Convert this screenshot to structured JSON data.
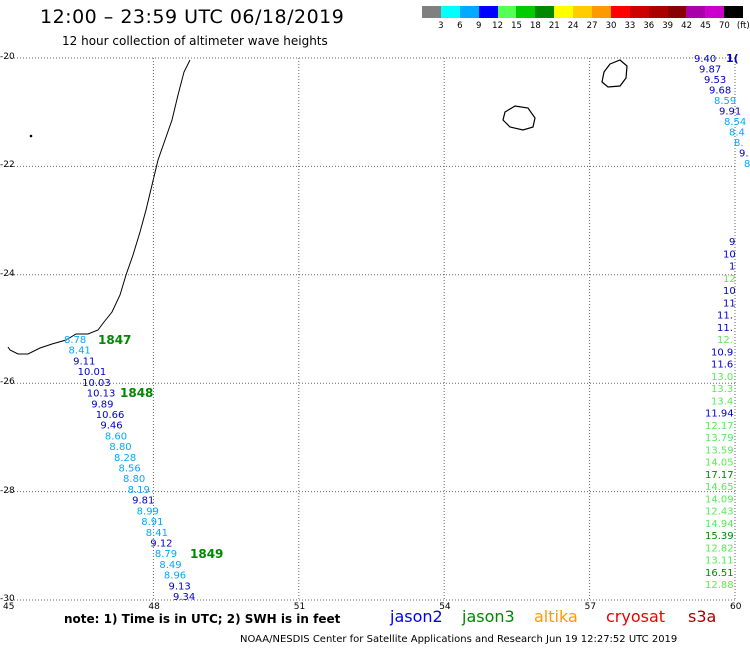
{
  "header": {
    "title": "12:00 – 23:59 UTC 06/18/2019",
    "subtitle": "12 hour collection of altimeter wave heights"
  },
  "legend": {
    "swatches": [
      "#808080",
      "#00ffff",
      "#00aaff",
      "#0000ff",
      "#55ff55",
      "#00cc00",
      "#008800",
      "#ffff00",
      "#ffcc00",
      "#ff9900",
      "#ff0000",
      "#cc0000",
      "#aa0000",
      "#880000",
      "#aa00aa",
      "#cc00cc",
      "#000000"
    ],
    "labels": [
      "3",
      "6",
      "9",
      "12",
      "15",
      "18",
      "21",
      "24",
      "27",
      "30",
      "33",
      "36",
      "39",
      "42",
      "45",
      "70",
      "(ft)"
    ]
  },
  "axes": {
    "x_ticks": [
      "45",
      "48",
      "51",
      "54",
      "57",
      "60"
    ],
    "y_ticks": [
      "-20",
      "-22",
      "-24",
      "-26",
      "-28",
      "-30"
    ]
  },
  "tracks": {
    "left_track": [
      {
        "v": "8.78",
        "c": "#00aaff"
      },
      {
        "v": "8.41",
        "c": "#00aaff"
      },
      {
        "v": "9.11",
        "c": "#0000cc"
      },
      {
        "v": "10.01",
        "c": "#0000cc"
      },
      {
        "v": "10.03",
        "c": "#0000cc"
      },
      {
        "v": "10.13",
        "c": "#0000cc"
      },
      {
        "v": "9.89",
        "c": "#0000cc"
      },
      {
        "v": "10.66",
        "c": "#0000cc"
      },
      {
        "v": "9.46",
        "c": "#0000cc"
      },
      {
        "v": "8.60",
        "c": "#00aaff"
      },
      {
        "v": "8.80",
        "c": "#00aaff"
      },
      {
        "v": "8.28",
        "c": "#00aaff"
      },
      {
        "v": "8.56",
        "c": "#00aaff"
      },
      {
        "v": "8.80",
        "c": "#00aaff"
      },
      {
        "v": "8.19",
        "c": "#00aaff"
      },
      {
        "v": "9.81",
        "c": "#0000cc"
      },
      {
        "v": "8.99",
        "c": "#00aaff"
      },
      {
        "v": "8.91",
        "c": "#00aaff"
      },
      {
        "v": "8.41",
        "c": "#00aaff"
      },
      {
        "v": "9.12",
        "c": "#0000cc"
      },
      {
        "v": "8.79",
        "c": "#00aaff"
      },
      {
        "v": "8.49",
        "c": "#00aaff"
      },
      {
        "v": "8.96",
        "c": "#00aaff"
      },
      {
        "v": "9.13",
        "c": "#0000cc"
      },
      {
        "v": "9.34",
        "c": "#0000cc"
      }
    ],
    "time_labels": [
      "1847",
      "1848",
      "1849"
    ],
    "right_track": [
      {
        "v": "9.40",
        "c": "#0000cc"
      },
      {
        "v": "9.87",
        "c": "#0000cc"
      },
      {
        "v": "9.53",
        "c": "#0000cc"
      },
      {
        "v": "9.68",
        "c": "#0000cc"
      },
      {
        "v": "8.59",
        "c": "#00aaff"
      },
      {
        "v": "9.91",
        "c": "#0000cc"
      },
      {
        "v": "8.54",
        "c": "#00aaff"
      },
      {
        "v": "8.4",
        "c": "#00aaff"
      },
      {
        "v": "8.",
        "c": "#00aaff"
      },
      {
        "v": "9.",
        "c": "#0000cc"
      },
      {
        "v": "8",
        "c": "#00aaff"
      }
    ],
    "right_track_top_extra": "1(",
    "right_track_lower": [
      {
        "v": "9",
        "c": "#0000cc"
      },
      {
        "v": "10",
        "c": "#0000cc"
      },
      {
        "v": "1",
        "c": "#0000cc"
      },
      {
        "v": "12",
        "c": "#55ee55"
      },
      {
        "v": "10",
        "c": "#0000cc"
      },
      {
        "v": "11",
        "c": "#0000cc"
      },
      {
        "v": "11.",
        "c": "#0000cc"
      },
      {
        "v": "11.",
        "c": "#0000cc"
      },
      {
        "v": "12.",
        "c": "#55ee55"
      },
      {
        "v": "10.9",
        "c": "#0000cc"
      },
      {
        "v": "11.6",
        "c": "#0000cc"
      },
      {
        "v": "13.0",
        "c": "#55ee55"
      },
      {
        "v": "13.3",
        "c": "#55ee55"
      },
      {
        "v": "13.4",
        "c": "#55ee55"
      },
      {
        "v": "11.94",
        "c": "#0000cc"
      },
      {
        "v": "12.17",
        "c": "#55ee55"
      },
      {
        "v": "13.79",
        "c": "#55ee55"
      },
      {
        "v": "13.59",
        "c": "#55ee55"
      },
      {
        "v": "14.05",
        "c": "#55ee55"
      },
      {
        "v": "17.17",
        "c": "#008800"
      },
      {
        "v": "14.65",
        "c": "#55ee55"
      },
      {
        "v": "14.09",
        "c": "#55ee55"
      },
      {
        "v": "12.43",
        "c": "#55ee55"
      },
      {
        "v": "14.94",
        "c": "#55ee55"
      },
      {
        "v": "15.39",
        "c": "#008800"
      },
      {
        "v": "12.82",
        "c": "#55ee55"
      },
      {
        "v": "13.11",
        "c": "#55ee55"
      },
      {
        "v": "16.51",
        "c": "#008800"
      },
      {
        "v": "12.88",
        "c": "#55ee55"
      }
    ]
  },
  "footer": {
    "note": "note: 1) Time is in UTC; 2) SWH is in feet",
    "satellites": [
      {
        "name": "jason2",
        "color": "#0000ee"
      },
      {
        "name": "jason3",
        "color": "#008800"
      },
      {
        "name": "altika",
        "color": "#ff9900"
      },
      {
        "name": "cryosat",
        "color": "#ee0000"
      },
      {
        "name": "s3a",
        "color": "#aa0000"
      }
    ],
    "credit": "NOAA/NESDIS Center for Satellite Applications and Research   Jun 19 12:27:52 UTC 2019"
  }
}
